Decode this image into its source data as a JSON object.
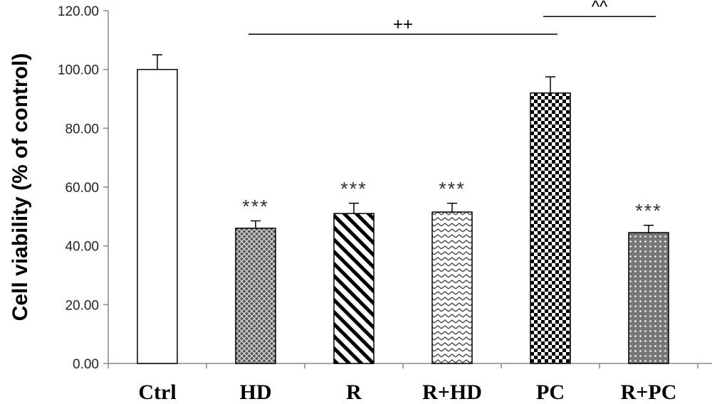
{
  "chart_data": {
    "type": "bar",
    "title": "",
    "xlabel": "",
    "ylabel": "Cell viability (% of control)",
    "ylim": [
      0,
      120
    ],
    "yticks": [
      "0.00",
      "20.00",
      "40.00",
      "60.00",
      "80.00",
      "100.00",
      "120.00"
    ],
    "categories": [
      "Ctrl",
      "HD",
      "R",
      "R+HD",
      "PC",
      "R+PC"
    ],
    "values": [
      100.0,
      46.0,
      51.0,
      51.5,
      92.0,
      44.5
    ],
    "errors": [
      5.0,
      2.5,
      3.5,
      3.0,
      5.5,
      2.5
    ],
    "patterns": [
      "solid-white",
      "crosshatch",
      "diagonal-stripes",
      "zigzag",
      "checkerboard",
      "dots"
    ],
    "significance": [
      "",
      "***",
      "***",
      "***",
      "",
      "***"
    ],
    "brackets": [
      {
        "from": "HD",
        "to": "PC",
        "label": "++",
        "level": 112
      },
      {
        "from": "PC",
        "to": "R+PC",
        "label": "^^",
        "level": 118
      }
    ],
    "grid": false,
    "legend": "none"
  }
}
